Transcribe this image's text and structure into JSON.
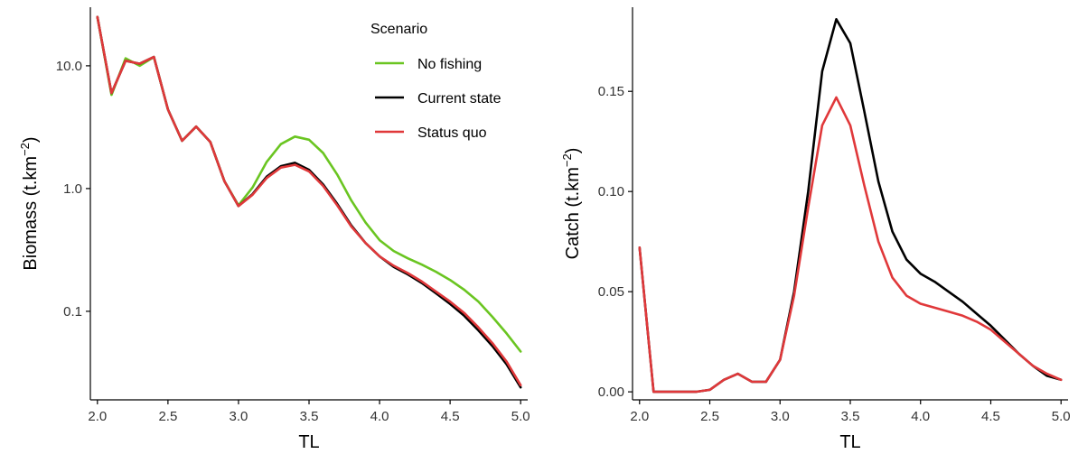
{
  "chart_data": [
    {
      "type": "line",
      "ylabel": "Biomass (t.km",
      "ylabel_sup": "−2",
      "ylabel_close": ")",
      "xlabel": "TL",
      "yscale": "log",
      "xlim": [
        1.95,
        5.05
      ],
      "ylim": [
        0.019,
        30
      ],
      "xticks": [
        2.0,
        2.5,
        3.0,
        3.5,
        4.0,
        4.5,
        5.0
      ],
      "xtick_labels": [
        "2.0",
        "2.5",
        "3.0",
        "3.5",
        "4.0",
        "4.5",
        "5.0"
      ],
      "yticks": [
        0.1,
        1.0,
        10.0
      ],
      "ytick_labels": [
        "0.1",
        "1.0",
        "10.0"
      ],
      "legend": {
        "title": "Scenario",
        "placement": "top-right",
        "entries": [
          "No fishing",
          "Current state",
          "Status quo"
        ]
      },
      "x": [
        2.0,
        2.1,
        2.2,
        2.3,
        2.4,
        2.5,
        2.6,
        2.7,
        2.8,
        2.9,
        3.0,
        3.1,
        3.2,
        3.3,
        3.4,
        3.5,
        3.6,
        3.7,
        3.8,
        3.9,
        4.0,
        4.1,
        4.2,
        4.3,
        4.4,
        4.5,
        4.6,
        4.7,
        4.8,
        4.9,
        5.0
      ],
      "series": [
        {
          "name": "No fishing",
          "color": "#6ac521",
          "values": [
            25.0,
            5.8,
            11.5,
            10.0,
            11.8,
            4.4,
            2.45,
            3.2,
            2.4,
            1.15,
            0.73,
            1.02,
            1.65,
            2.3,
            2.65,
            2.5,
            1.95,
            1.3,
            0.8,
            0.53,
            0.38,
            0.31,
            0.27,
            0.24,
            0.21,
            0.18,
            0.15,
            0.12,
            0.09,
            0.066,
            0.047
          ]
        },
        {
          "name": "Current state",
          "color": "#000000",
          "values": [
            25.0,
            6.0,
            11.0,
            10.4,
            11.8,
            4.4,
            2.45,
            3.2,
            2.4,
            1.15,
            0.72,
            0.9,
            1.25,
            1.52,
            1.62,
            1.42,
            1.08,
            0.75,
            0.5,
            0.36,
            0.28,
            0.23,
            0.2,
            0.17,
            0.14,
            0.115,
            0.092,
            0.07,
            0.052,
            0.037,
            0.024
          ]
        },
        {
          "name": "Status quo",
          "color": "#e0383a",
          "values": [
            25.0,
            6.0,
            11.0,
            10.4,
            11.8,
            4.4,
            2.45,
            3.2,
            2.4,
            1.15,
            0.72,
            0.89,
            1.22,
            1.48,
            1.56,
            1.38,
            1.05,
            0.73,
            0.49,
            0.36,
            0.28,
            0.235,
            0.205,
            0.175,
            0.145,
            0.12,
            0.097,
            0.074,
            0.055,
            0.039,
            0.025
          ]
        }
      ]
    },
    {
      "type": "line",
      "ylabel": "Catch (t.km",
      "ylabel_sup": "−2",
      "ylabel_close": ")",
      "xlabel": "TL",
      "yscale": "linear",
      "xlim": [
        1.95,
        5.05
      ],
      "ylim": [
        -0.004,
        0.192
      ],
      "xticks": [
        2.0,
        2.5,
        3.0,
        3.5,
        4.0,
        4.5,
        5.0
      ],
      "xtick_labels": [
        "2.0",
        "2.5",
        "3.0",
        "3.5",
        "4.0",
        "4.5",
        "5.0"
      ],
      "yticks": [
        0.0,
        0.05,
        0.1,
        0.15
      ],
      "ytick_labels": [
        "0.00",
        "0.05",
        "0.10",
        "0.15"
      ],
      "x": [
        2.0,
        2.1,
        2.2,
        2.3,
        2.4,
        2.5,
        2.6,
        2.7,
        2.8,
        2.9,
        3.0,
        3.1,
        3.2,
        3.3,
        3.4,
        3.5,
        3.6,
        3.7,
        3.8,
        3.9,
        4.0,
        4.1,
        4.2,
        4.3,
        4.4,
        4.5,
        4.6,
        4.7,
        4.8,
        4.9,
        5.0
      ],
      "series": [
        {
          "name": "Current state",
          "color": "#000000",
          "values": [
            0.072,
            0.0,
            0.0,
            0.0,
            0.0,
            0.001,
            0.006,
            0.009,
            0.005,
            0.005,
            0.016,
            0.05,
            0.1,
            0.16,
            0.186,
            0.174,
            0.14,
            0.105,
            0.08,
            0.066,
            0.059,
            0.055,
            0.05,
            0.045,
            0.039,
            0.033,
            0.026,
            0.019,
            0.013,
            0.008,
            0.006
          ]
        },
        {
          "name": "Status quo",
          "color": "#e0383a",
          "values": [
            0.072,
            0.0,
            0.0,
            0.0,
            0.0,
            0.001,
            0.006,
            0.009,
            0.005,
            0.005,
            0.016,
            0.048,
            0.092,
            0.133,
            0.147,
            0.133,
            0.103,
            0.075,
            0.057,
            0.048,
            0.044,
            0.042,
            0.04,
            0.038,
            0.035,
            0.031,
            0.025,
            0.019,
            0.013,
            0.009,
            0.006
          ]
        }
      ]
    }
  ]
}
